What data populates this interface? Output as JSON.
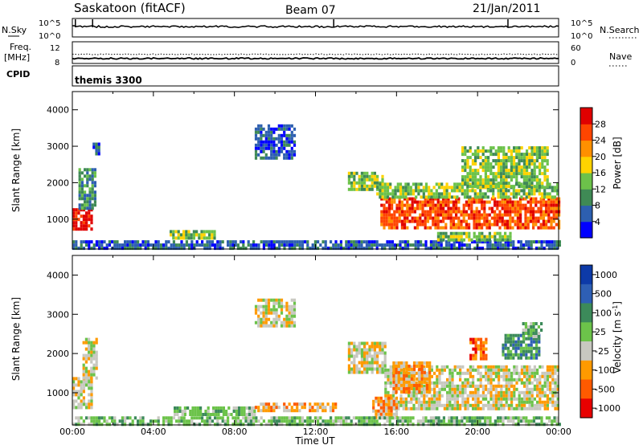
{
  "header": {
    "station": "Saskatoon (fitACF)",
    "beam": "Beam 07",
    "date": "21/Jan/2011"
  },
  "strips": {
    "nsky_label": "N.Sky",
    "nsky_ticks": [
      "10^5",
      "10^0"
    ],
    "nsearch_label": "N.Search",
    "nsearch_ticks": [
      "10^5",
      "10^0"
    ],
    "freq_label": "Freq.",
    "freq_unit": "[MHz]",
    "freq_ticks": [
      "12",
      "8"
    ],
    "nave_label": "Nave",
    "nave_ticks": [
      "60",
      "0"
    ],
    "cpid_label": "CPID",
    "cpid_value": "themis 3300"
  },
  "icons": {
    "nsearch_legend": "dotted-line-icon",
    "nave_legend": "dotted-line-icon"
  },
  "chart_data": [
    {
      "type": "heatmap",
      "name": "power",
      "ylabel": "Slant Range [km]",
      "xlabel": "",
      "ylim": [
        180,
        4500
      ],
      "yticks": [
        "1000",
        "2000",
        "3000",
        "4000"
      ],
      "colorbar_label": "Power [dB]",
      "colorbar_ticks": [
        "4",
        "8",
        "12",
        "16",
        "20",
        "24",
        "28"
      ],
      "colors": [
        "#0000ff",
        "#2d5fb0",
        "#3f8a55",
        "#6cc24a",
        "#ffd300",
        "#ff9000",
        "#ff4500",
        "#e00000"
      ],
      "regions": [
        {
          "t0": 0.0,
          "t1": 1.0,
          "r0": 700,
          "r1": 1300,
          "level": 7
        },
        {
          "t0": 0.3,
          "t1": 1.1,
          "r0": 1300,
          "r1": 2400,
          "level": 2
        },
        {
          "t0": 1.0,
          "t1": 1.3,
          "r0": 2800,
          "r1": 3100,
          "level": 1
        },
        {
          "t0": 9.0,
          "t1": 11.0,
          "r0": 2700,
          "r1": 3600,
          "level": 1
        },
        {
          "t0": 13.6,
          "t1": 15.3,
          "r0": 1800,
          "r1": 2300,
          "level": 3
        },
        {
          "t0": 15.2,
          "t1": 24.0,
          "r0": 800,
          "r1": 1600,
          "level": 6
        },
        {
          "t0": 15.0,
          "t1": 24.0,
          "r0": 1600,
          "r1": 2000,
          "level": 3
        },
        {
          "t0": 19.2,
          "t1": 23.4,
          "r0": 1900,
          "r1": 3000,
          "level": 3
        },
        {
          "t0": 0.0,
          "t1": 24.0,
          "r0": 200,
          "r1": 420,
          "level": 1
        },
        {
          "t0": 4.8,
          "t1": 7.0,
          "r0": 500,
          "r1": 700,
          "level": 3
        },
        {
          "t0": 18.0,
          "t1": 21.6,
          "r0": 400,
          "r1": 650,
          "level": 3
        }
      ]
    },
    {
      "type": "heatmap",
      "name": "velocity",
      "ylabel": "Slant Range [km]",
      "xlabel": "Time UT",
      "xticks": [
        "00:00",
        "04:00",
        "08:00",
        "12:00",
        "16:00",
        "20:00",
        "00:00"
      ],
      "ylim": [
        180,
        4500
      ],
      "yticks": [
        "1000",
        "2000",
        "3000",
        "4000"
      ],
      "colorbar_label": "Velocity [m s^-1]",
      "colorbar_ticks": [
        "1000",
        "500",
        "100",
        "25",
        "-25",
        "-100",
        "-500",
        "-1000"
      ],
      "colors": [
        "#0d3aa8",
        "#2e5fb5",
        "#3c8a5a",
        "#6cc34a",
        "#c8c8c0",
        "#ff9a00",
        "#ff5a00",
        "#e80000"
      ],
      "regions": [
        {
          "t0": 0.0,
          "t1": 1.0,
          "r0": 600,
          "r1": 1400,
          "level": 4
        },
        {
          "t0": 0.5,
          "t1": 1.2,
          "r0": 1400,
          "r1": 2400,
          "level": 4
        },
        {
          "t0": 9.0,
          "t1": 11.0,
          "r0": 2700,
          "r1": 3400,
          "level": 4
        },
        {
          "t0": 13.6,
          "t1": 15.4,
          "r0": 1500,
          "r1": 2300,
          "level": 4
        },
        {
          "t0": 15.4,
          "t1": 24.0,
          "r0": 600,
          "r1": 1700,
          "level": 4
        },
        {
          "t0": 15.8,
          "t1": 17.6,
          "r0": 1000,
          "r1": 1800,
          "level": 5
        },
        {
          "t0": 14.8,
          "t1": 16.0,
          "r0": 400,
          "r1": 900,
          "level": 5
        },
        {
          "t0": 19.6,
          "t1": 20.4,
          "r0": 1900,
          "r1": 2400,
          "level": 6
        },
        {
          "t0": 21.2,
          "t1": 23.0,
          "r0": 1900,
          "r1": 2500,
          "level": 2
        },
        {
          "t0": 22.2,
          "t1": 23.2,
          "r0": 2400,
          "r1": 2800,
          "level": 3
        },
        {
          "t0": 0.0,
          "t1": 24.0,
          "r0": 200,
          "r1": 400,
          "level": 3
        },
        {
          "t0": 5.0,
          "t1": 9.0,
          "r0": 450,
          "r1": 650,
          "level": 3
        },
        {
          "t0": 9.0,
          "t1": 13.0,
          "r0": 550,
          "r1": 750,
          "level": 5
        }
      ]
    }
  ]
}
